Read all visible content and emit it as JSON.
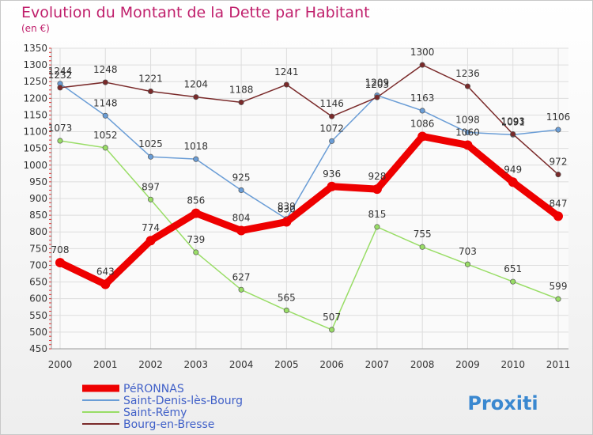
{
  "title": "Evolution du Montant de la Dette par Habitant",
  "subtitle": "(en €)",
  "logo": "Proxiti",
  "chart_data": {
    "type": "line",
    "x": [
      "2000",
      "2001",
      "2002",
      "2003",
      "2004",
      "2005",
      "2006",
      "2007",
      "2008",
      "2009",
      "2010",
      "2011"
    ],
    "ylim": [
      450,
      1350
    ],
    "yticks": [
      450,
      500,
      550,
      600,
      650,
      700,
      750,
      800,
      850,
      900,
      950,
      1000,
      1050,
      1100,
      1150,
      1200,
      1250,
      1300,
      1350
    ],
    "grid": true,
    "legend": "bottom-left",
    "series": [
      {
        "name": "PéRONNAS",
        "color": "#ee0000",
        "values": [
          708,
          643,
          774,
          856,
          804,
          830,
          936,
          928,
          1086,
          1060,
          949,
          847
        ]
      },
      {
        "name": "Saint-Denis-lès-Bourg",
        "color": "#6a9dd6",
        "values": [
          1244,
          1148,
          1025,
          1018,
          925,
          839,
          1072,
          1209,
          1163,
          1098,
          1091,
          1106
        ]
      },
      {
        "name": "Saint-Rémy",
        "color": "#99dd66",
        "values": [
          1073,
          1052,
          897,
          739,
          627,
          565,
          507,
          815,
          755,
          703,
          651,
          599
        ]
      },
      {
        "name": "Bourg-en-Bresse",
        "color": "#7a2a2a",
        "values": [
          1232,
          1248,
          1221,
          1204,
          1188,
          1241,
          1146,
          1203,
          1300,
          1236,
          1093,
          972
        ]
      }
    ]
  }
}
